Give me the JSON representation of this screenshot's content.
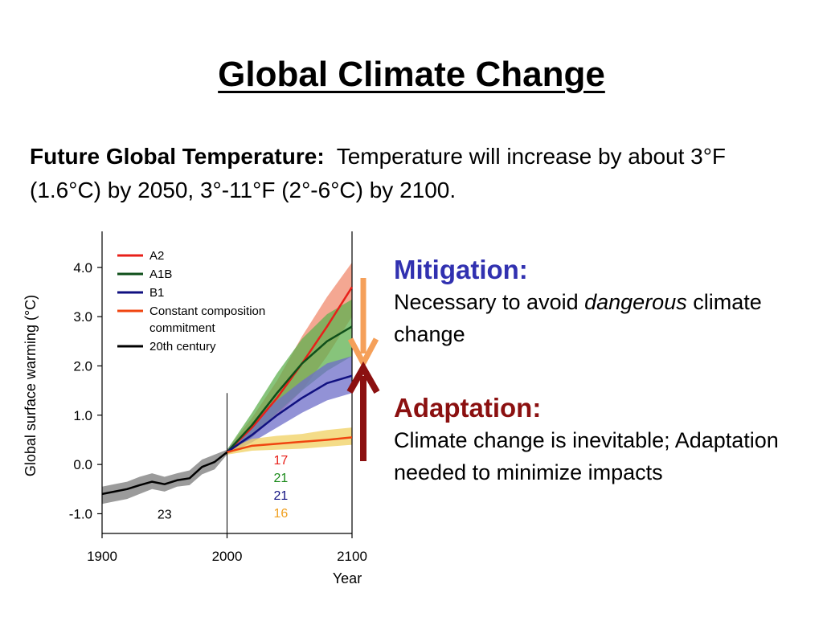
{
  "slide": {
    "title": "Global Climate Change",
    "intro_lead": "Future Global Temperature:",
    "intro_text": "Temperature will increase by about 3°F (1.6°C) by 2050, 3°-11°F (2°-6°C) by 2100."
  },
  "mitigation": {
    "heading": "Mitigation:",
    "text_before": "Necessary to avoid ",
    "text_em": "dangerous",
    "text_after": " climate change"
  },
  "adaptation": {
    "heading": "Adaptation:",
    "text": "Climate change is inevitable; Adaptation needed to minimize impacts"
  },
  "arrows": {
    "down_color": "#f5a05a",
    "up_color": "#8b1010"
  },
  "chart_data": {
    "type": "line",
    "xlabel": "Year",
    "ylabel": "Global surface warming (°C)",
    "xlim": [
      1900,
      2100
    ],
    "ylim": [
      -1.4,
      4.6
    ],
    "xticks": [
      1900,
      2000,
      2100
    ],
    "yticks": [
      -1.0,
      0.0,
      1.0,
      2.0,
      3.0,
      4.0
    ],
    "ytick_labels": [
      "-1.0",
      "0.0",
      "1.0",
      "2.0",
      "3.0",
      "4.0"
    ],
    "legend_position": "top-left",
    "series": [
      {
        "name": "A2",
        "color": "#e8201a",
        "band_color": "#f08a6e",
        "x": [
          2000,
          2020,
          2040,
          2060,
          2080,
          2100
        ],
        "y": [
          0.25,
          0.75,
          1.35,
          2.05,
          2.8,
          3.6
        ],
        "band_low": [
          0.2,
          0.55,
          1.0,
          1.5,
          2.2,
          3.0
        ],
        "band_high": [
          0.3,
          0.95,
          1.7,
          2.6,
          3.4,
          4.1
        ]
      },
      {
        "name": "A1B",
        "color": "#0f4f1a",
        "band_color": "#5fb04f",
        "x": [
          2000,
          2020,
          2040,
          2060,
          2080,
          2100
        ],
        "y": [
          0.25,
          0.8,
          1.45,
          2.05,
          2.5,
          2.8
        ],
        "band_low": [
          0.2,
          0.55,
          1.05,
          1.5,
          1.9,
          2.2
        ],
        "band_high": [
          0.3,
          1.05,
          1.85,
          2.55,
          3.05,
          3.35
        ]
      },
      {
        "name": "B1",
        "color": "#101080",
        "band_color": "#6e6ec8",
        "x": [
          2000,
          2020,
          2040,
          2060,
          2080,
          2100
        ],
        "y": [
          0.25,
          0.6,
          1.0,
          1.35,
          1.65,
          1.8
        ],
        "band_low": [
          0.2,
          0.45,
          0.75,
          1.05,
          1.3,
          1.45
        ],
        "band_high": [
          0.3,
          0.8,
          1.3,
          1.7,
          2.05,
          2.2
        ]
      },
      {
        "name": "Constant composition commitment",
        "color": "#f04510",
        "band_color": "#f0d060",
        "x": [
          2000,
          2020,
          2040,
          2060,
          2080,
          2100
        ],
        "y": [
          0.25,
          0.38,
          0.42,
          0.46,
          0.5,
          0.55
        ],
        "band_low": [
          0.2,
          0.28,
          0.3,
          0.32,
          0.36,
          0.4
        ],
        "band_high": [
          0.3,
          0.52,
          0.58,
          0.62,
          0.7,
          0.75
        ]
      },
      {
        "name": "20th century",
        "color": "#000000",
        "band_color": "#7a7a7a",
        "x": [
          1900,
          1910,
          1920,
          1930,
          1940,
          1950,
          1960,
          1970,
          1980,
          1990,
          2000
        ],
        "y": [
          -0.6,
          -0.55,
          -0.5,
          -0.42,
          -0.35,
          -0.4,
          -0.32,
          -0.28,
          -0.05,
          0.05,
          0.25
        ],
        "band_low": [
          -0.8,
          -0.75,
          -0.7,
          -0.6,
          -0.5,
          -0.55,
          -0.45,
          -0.42,
          -0.2,
          -0.1,
          0.2
        ],
        "band_high": [
          -0.45,
          -0.4,
          -0.35,
          -0.25,
          -0.18,
          -0.25,
          -0.18,
          -0.12,
          0.1,
          0.2,
          0.3
        ]
      }
    ],
    "legend": [
      {
        "label": "A2",
        "color": "#e8201a"
      },
      {
        "label": "A1B",
        "color": "#0f4f1a"
      },
      {
        "label": "B1",
        "color": "#101080"
      },
      {
        "label": "Constant composition",
        "label2": "commitment",
        "color": "#f04510"
      },
      {
        "label": "20th century",
        "color": "#000000"
      }
    ],
    "annotations": {
      "model_count_20th": "23",
      "model_counts": [
        {
          "text": "17",
          "color": "#e8201a"
        },
        {
          "text": "21",
          "color": "#1a8a1a"
        },
        {
          "text": "21",
          "color": "#101080"
        },
        {
          "text": "16",
          "color": "#f0a020"
        }
      ]
    }
  }
}
